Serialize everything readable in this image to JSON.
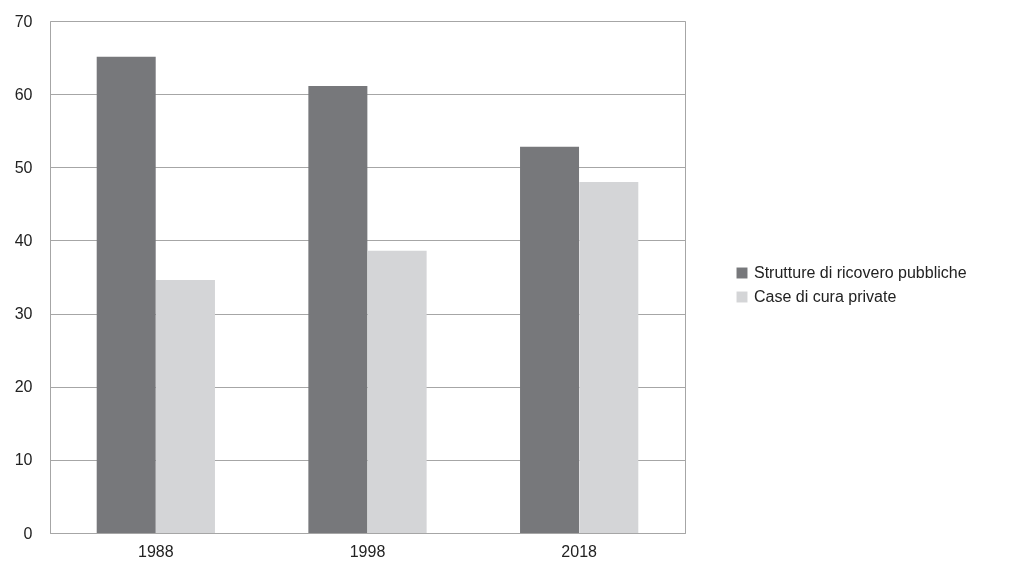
{
  "chart_data": {
    "type": "bar",
    "categories": [
      "1988",
      "1998",
      "2018"
    ],
    "series": [
      {
        "name": "Strutture di ricovero pubbliche",
        "color": "#77787b",
        "values": [
          65.1,
          61.1,
          52.8
        ]
      },
      {
        "name": "Case di cura private",
        "color": "#d4d5d7",
        "values": [
          34.6,
          38.6,
          48.0
        ]
      }
    ],
    "ylim": [
      0,
      70
    ],
    "yticks": [
      0,
      10,
      20,
      30,
      40,
      50,
      60,
      70
    ],
    "grid": "y",
    "legend": "right"
  }
}
